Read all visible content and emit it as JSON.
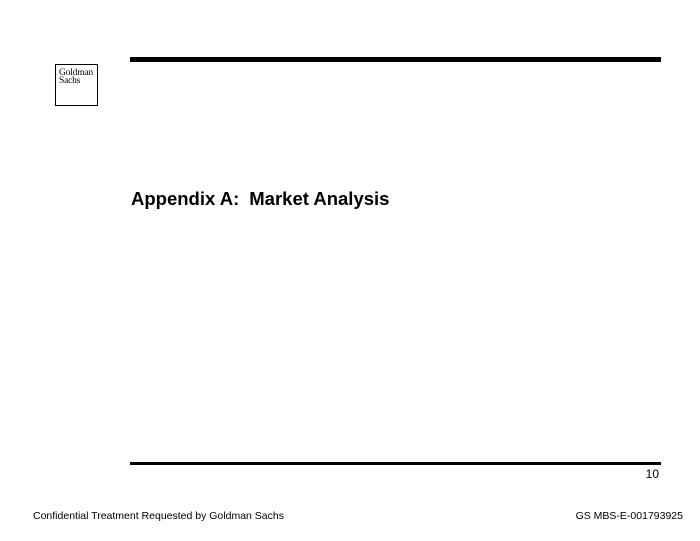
{
  "logo": {
    "line1": "Goldman",
    "line2": "Sachs"
  },
  "section": {
    "label": "Appendix A:",
    "title": "Market Analysis"
  },
  "page_number": "10",
  "footer": {
    "left_text": "Confidential Treatment Requested by Goldman Sachs",
    "right_text": "GS MBS-E-001793925"
  }
}
